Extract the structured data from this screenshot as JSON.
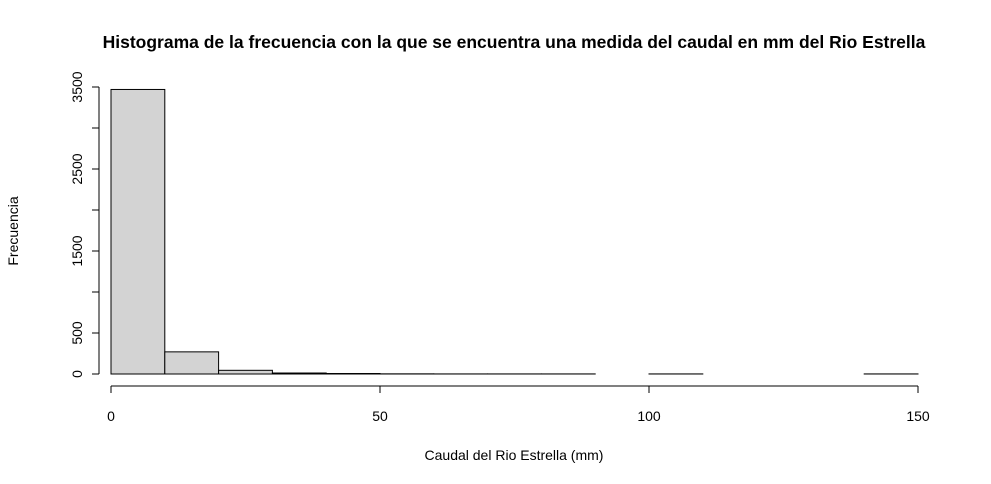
{
  "chart_data": {
    "type": "bar",
    "title": "Histograma de la frecuencia con la que se encuentra una medida del caudal en mm del Rio Estrella",
    "xlabel": "Caudal del Rio Estrella (mm)",
    "ylabel": "Frecuencia",
    "xlim": [
      0,
      150
    ],
    "ylim": [
      0,
      3500
    ],
    "x_ticks": [
      0,
      50,
      100,
      150
    ],
    "x_tick_labels": [
      "0",
      "50",
      "100",
      "150"
    ],
    "y_ticks": [
      0,
      500,
      1000,
      1500,
      2000,
      2500,
      3000,
      3500
    ],
    "y_tick_labels": [
      "0",
      "500",
      "",
      "1500",
      "",
      "2500",
      "",
      "3500"
    ],
    "bins": [
      {
        "from": 0,
        "to": 10,
        "count": 3470
      },
      {
        "from": 10,
        "to": 20,
        "count": 270
      },
      {
        "from": 20,
        "to": 30,
        "count": 45
      },
      {
        "from": 30,
        "to": 40,
        "count": 12
      },
      {
        "from": 40,
        "to": 50,
        "count": 6
      },
      {
        "from": 50,
        "to": 60,
        "count": 2
      },
      {
        "from": 60,
        "to": 70,
        "count": 1
      },
      {
        "from": 70,
        "to": 80,
        "count": 1
      },
      {
        "from": 80,
        "to": 90,
        "count": 1
      },
      {
        "from": 90,
        "to": 100,
        "count": 0
      },
      {
        "from": 100,
        "to": 110,
        "count": 1
      },
      {
        "from": 110,
        "to": 120,
        "count": 0
      },
      {
        "from": 120,
        "to": 130,
        "count": 0
      },
      {
        "from": 130,
        "to": 140,
        "count": 0
      },
      {
        "from": 140,
        "to": 150,
        "count": 1
      }
    ],
    "bar_fill": "#d3d3d3",
    "bar_stroke": "#000000",
    "grid": false
  }
}
